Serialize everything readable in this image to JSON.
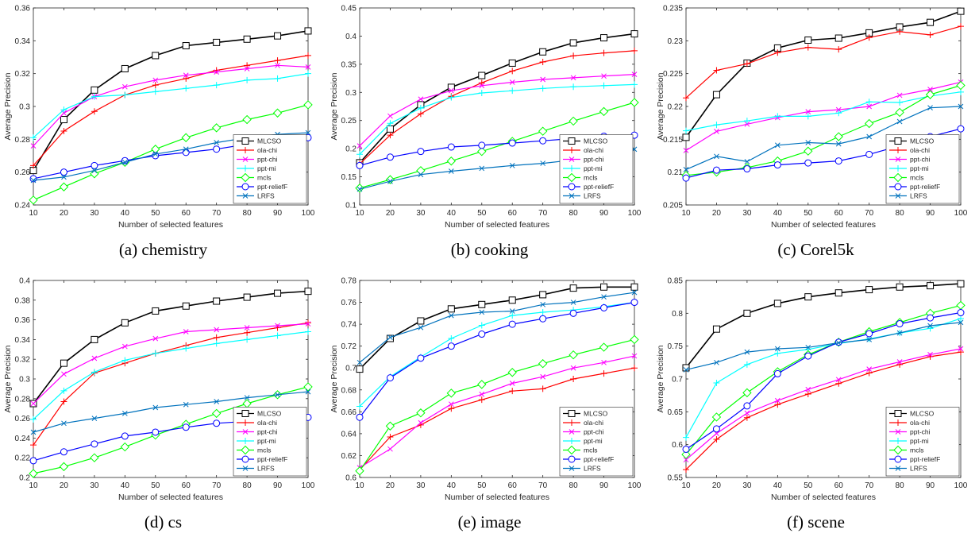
{
  "x_ticks": [
    10,
    20,
    30,
    40,
    50,
    60,
    70,
    80,
    90,
    100
  ],
  "series_styles": [
    {
      "name": "MLCSO",
      "color": "#000000",
      "marker": "square"
    },
    {
      "name": "ola-chi",
      "color": "#ff0000",
      "marker": "plus"
    },
    {
      "name": "ppt-chi",
      "color": "#ff00ff",
      "marker": "x"
    },
    {
      "name": "ppt-mi",
      "color": "#00ffff",
      "marker": "plus"
    },
    {
      "name": "mcls",
      "color": "#00ff00",
      "marker": "diamond"
    },
    {
      "name": "ppt-reliefF",
      "color": "#0000ff",
      "marker": "circle"
    },
    {
      "name": "LRFS",
      "color": "#0072bd",
      "marker": "x"
    }
  ],
  "chart_data": [
    {
      "type": "line",
      "caption": "(a) chemistry",
      "xlabel": "Number of selected features",
      "ylabel": "Average Precision",
      "xlim": [
        10,
        100
      ],
      "ylim": [
        0.24,
        0.36
      ],
      "yticks": [
        0.24,
        0.26,
        0.28,
        0.3,
        0.32,
        0.34,
        0.36
      ],
      "ytick_labels": [
        "0.24",
        "0.26",
        "0.28",
        "0.3",
        "0.32",
        "0.34",
        "0.36"
      ],
      "legend": "bottom-right",
      "x": [
        10,
        20,
        30,
        40,
        50,
        60,
        70,
        80,
        90,
        100
      ],
      "series": [
        {
          "name": "MLCSO",
          "values": [
            0.261,
            0.292,
            0.31,
            0.323,
            0.331,
            0.337,
            0.339,
            0.341,
            0.343,
            0.346
          ]
        },
        {
          "name": "ola-chi",
          "values": [
            0.264,
            0.285,
            0.297,
            0.307,
            0.313,
            0.317,
            0.322,
            0.325,
            0.328,
            0.331
          ]
        },
        {
          "name": "ppt-chi",
          "values": [
            0.276,
            0.296,
            0.306,
            0.312,
            0.316,
            0.319,
            0.321,
            0.323,
            0.325,
            0.324
          ]
        },
        {
          "name": "ppt-mi",
          "values": [
            0.281,
            0.298,
            0.306,
            0.307,
            0.309,
            0.311,
            0.313,
            0.316,
            0.317,
            0.32
          ]
        },
        {
          "name": "mcls",
          "values": [
            0.243,
            0.251,
            0.259,
            0.266,
            0.274,
            0.281,
            0.287,
            0.292,
            0.296,
            0.301
          ]
        },
        {
          "name": "ppt-reliefF",
          "values": [
            0.256,
            0.26,
            0.264,
            0.267,
            0.27,
            0.272,
            0.274,
            0.277,
            0.279,
            0.281
          ]
        },
        {
          "name": "LRFS",
          "values": [
            0.255,
            0.257,
            0.261,
            0.266,
            0.271,
            0.274,
            0.278,
            0.281,
            0.283,
            0.284
          ]
        }
      ]
    },
    {
      "type": "line",
      "caption": "(b) cooking",
      "xlabel": "Number of selected features",
      "ylabel": "Average Precision",
      "xlim": [
        10,
        100
      ],
      "ylim": [
        0.1,
        0.45
      ],
      "yticks": [
        0.1,
        0.15,
        0.2,
        0.25,
        0.3,
        0.35,
        0.4,
        0.45
      ],
      "ytick_labels": [
        "0.1",
        "0.15",
        "0.2",
        "0.25",
        "0.3",
        "0.35",
        "0.4",
        "0.45"
      ],
      "legend": "bottom-right",
      "x": [
        10,
        20,
        30,
        40,
        50,
        60,
        70,
        80,
        90,
        100
      ],
      "series": [
        {
          "name": "MLCSO",
          "values": [
            0.175,
            0.235,
            0.278,
            0.309,
            0.33,
            0.352,
            0.372,
            0.388,
            0.397,
            0.404
          ]
        },
        {
          "name": "ola-chi",
          "values": [
            0.173,
            0.224,
            0.262,
            0.293,
            0.317,
            0.338,
            0.354,
            0.365,
            0.37,
            0.374
          ]
        },
        {
          "name": "ppt-chi",
          "values": [
            0.205,
            0.258,
            0.288,
            0.303,
            0.312,
            0.318,
            0.323,
            0.326,
            0.329,
            0.332
          ]
        },
        {
          "name": "ppt-mi",
          "values": [
            0.19,
            0.245,
            0.272,
            0.291,
            0.299,
            0.303,
            0.307,
            0.31,
            0.312,
            0.314
          ]
        },
        {
          "name": "mcls",
          "values": [
            0.13,
            0.145,
            0.161,
            0.178,
            0.195,
            0.213,
            0.231,
            0.249,
            0.266,
            0.282
          ]
        },
        {
          "name": "ppt-reliefF",
          "values": [
            0.17,
            0.185,
            0.195,
            0.203,
            0.206,
            0.21,
            0.214,
            0.218,
            0.222,
            0.224
          ]
        },
        {
          "name": "LRFS",
          "values": [
            0.128,
            0.142,
            0.154,
            0.16,
            0.165,
            0.17,
            0.174,
            0.18,
            0.185,
            0.199
          ]
        }
      ]
    },
    {
      "type": "line",
      "caption": "(c) Corel5k",
      "xlabel": "Number of selected features",
      "ylabel": "Average Precision",
      "xlim": [
        10,
        100
      ],
      "ylim": [
        0.205,
        0.235
      ],
      "yticks": [
        0.205,
        0.21,
        0.215,
        0.22,
        0.225,
        0.23,
        0.235
      ],
      "ytick_labels": [
        "0.205",
        "0.21",
        "0.215",
        "0.22",
        "0.225",
        "0.23",
        "0.235"
      ],
      "legend": "bottom-right",
      "x": [
        10,
        20,
        30,
        40,
        50,
        60,
        70,
        80,
        90,
        100
      ],
      "series": [
        {
          "name": "MLCSO",
          "values": [
            0.2153,
            0.2218,
            0.2266,
            0.2289,
            0.2301,
            0.2304,
            0.2312,
            0.2321,
            0.2328,
            0.2345
          ]
        },
        {
          "name": "ola-chi",
          "values": [
            0.2213,
            0.2255,
            0.2265,
            0.2282,
            0.229,
            0.2287,
            0.2305,
            0.2314,
            0.2309,
            0.2322
          ]
        },
        {
          "name": "ppt-chi",
          "values": [
            0.2133,
            0.2162,
            0.2173,
            0.2183,
            0.2192,
            0.2195,
            0.22,
            0.2217,
            0.2226,
            0.2237
          ]
        },
        {
          "name": "ppt-mi",
          "values": [
            0.2163,
            0.2172,
            0.2178,
            0.2185,
            0.2185,
            0.219,
            0.2207,
            0.2206,
            0.2216,
            0.2222
          ]
        },
        {
          "name": "mcls",
          "values": [
            0.2095,
            0.21,
            0.2107,
            0.2117,
            0.2132,
            0.2154,
            0.2174,
            0.2191,
            0.2218,
            0.2232
          ]
        },
        {
          "name": "ppt-reliefF",
          "values": [
            0.2091,
            0.2103,
            0.2105,
            0.2111,
            0.2114,
            0.2117,
            0.2127,
            0.214,
            0.2154,
            0.2166
          ]
        },
        {
          "name": "LRFS",
          "values": [
            0.2104,
            0.2124,
            0.2116,
            0.2141,
            0.2145,
            0.2143,
            0.2154,
            0.2177,
            0.2198,
            0.22
          ]
        }
      ]
    },
    {
      "type": "line",
      "caption": "(d) cs",
      "xlabel": "Number of selected features",
      "ylabel": "Average Precision",
      "xlim": [
        10,
        100
      ],
      "ylim": [
        0.2,
        0.4
      ],
      "yticks": [
        0.2,
        0.22,
        0.24,
        0.26,
        0.28,
        0.3,
        0.32,
        0.34,
        0.36,
        0.38,
        0.4
      ],
      "ytick_labels": [
        "0.2",
        "0.22",
        "0.24",
        "0.26",
        "0.28",
        "0.3",
        "0.32",
        "0.34",
        "0.36",
        "0.38",
        "0.4"
      ],
      "legend": "bottom-right",
      "x": [
        10,
        20,
        30,
        40,
        50,
        60,
        70,
        80,
        90,
        100
      ],
      "series": [
        {
          "name": "MLCSO",
          "values": [
            0.275,
            0.316,
            0.34,
            0.357,
            0.369,
            0.374,
            0.379,
            0.383,
            0.387,
            0.389
          ]
        },
        {
          "name": "ola-chi",
          "values": [
            0.233,
            0.277,
            0.306,
            0.316,
            0.326,
            0.334,
            0.342,
            0.347,
            0.352,
            0.357
          ]
        },
        {
          "name": "ppt-chi",
          "values": [
            0.275,
            0.305,
            0.321,
            0.333,
            0.341,
            0.348,
            0.35,
            0.352,
            0.354,
            0.356
          ]
        },
        {
          "name": "ppt-mi",
          "values": [
            0.259,
            0.288,
            0.307,
            0.319,
            0.326,
            0.331,
            0.336,
            0.34,
            0.344,
            0.348
          ]
        },
        {
          "name": "mcls",
          "values": [
            0.204,
            0.211,
            0.22,
            0.231,
            0.243,
            0.254,
            0.265,
            0.275,
            0.284,
            0.292
          ]
        },
        {
          "name": "ppt-reliefF",
          "values": [
            0.217,
            0.226,
            0.234,
            0.242,
            0.246,
            0.251,
            0.255,
            0.257,
            0.259,
            0.261
          ]
        },
        {
          "name": "LRFS",
          "values": [
            0.246,
            0.255,
            0.26,
            0.265,
            0.271,
            0.274,
            0.277,
            0.281,
            0.284,
            0.287
          ]
        }
      ]
    },
    {
      "type": "line",
      "caption": "(e) image",
      "xlabel": "Number of selected features",
      "ylabel": "Average Precision",
      "xlim": [
        10,
        100
      ],
      "ylim": [
        0.6,
        0.78
      ],
      "yticks": [
        0.6,
        0.62,
        0.64,
        0.66,
        0.68,
        0.7,
        0.72,
        0.74,
        0.76,
        0.78
      ],
      "ytick_labels": [
        "0.6",
        "0.62",
        "0.64",
        "0.66",
        "0.68",
        "0.7",
        "0.72",
        "0.74",
        "0.76",
        "0.78"
      ],
      "legend": "bottom-right",
      "x": [
        10,
        20,
        30,
        40,
        50,
        60,
        70,
        80,
        90,
        100
      ],
      "series": [
        {
          "name": "MLCSO",
          "values": [
            0.699,
            0.727,
            0.743,
            0.754,
            0.758,
            0.762,
            0.767,
            0.773,
            0.774,
            0.774
          ]
        },
        {
          "name": "ola-chi",
          "values": [
            0.607,
            0.637,
            0.648,
            0.663,
            0.671,
            0.679,
            0.681,
            0.69,
            0.695,
            0.7
          ]
        },
        {
          "name": "ppt-chi",
          "values": [
            0.609,
            0.626,
            0.65,
            0.667,
            0.676,
            0.686,
            0.692,
            0.7,
            0.705,
            0.711
          ]
        },
        {
          "name": "ppt-mi",
          "values": [
            0.665,
            0.692,
            0.71,
            0.727,
            0.739,
            0.748,
            0.751,
            0.753,
            0.756,
            0.76
          ]
        },
        {
          "name": "mcls",
          "values": [
            0.606,
            0.647,
            0.659,
            0.677,
            0.685,
            0.696,
            0.704,
            0.712,
            0.719,
            0.726
          ]
        },
        {
          "name": "ppt-reliefF",
          "values": [
            0.655,
            0.691,
            0.709,
            0.72,
            0.731,
            0.74,
            0.745,
            0.75,
            0.755,
            0.76
          ]
        },
        {
          "name": "LRFS",
          "values": [
            0.705,
            0.728,
            0.737,
            0.748,
            0.751,
            0.752,
            0.758,
            0.76,
            0.765,
            0.769
          ]
        }
      ]
    },
    {
      "type": "line",
      "caption": "(f) scene",
      "xlabel": "Number of selected features",
      "ylabel": "Average Precision",
      "xlim": [
        10,
        100
      ],
      "ylim": [
        0.55,
        0.85
      ],
      "yticks": [
        0.55,
        0.6,
        0.65,
        0.7,
        0.75,
        0.8,
        0.85
      ],
      "ytick_labels": [
        "0.55",
        "0.6",
        "0.65",
        "0.7",
        "0.75",
        "0.8",
        "0.85"
      ],
      "legend": "bottom-right",
      "x": [
        10,
        20,
        30,
        40,
        50,
        60,
        70,
        80,
        90,
        100
      ],
      "series": [
        {
          "name": "MLCSO",
          "values": [
            0.717,
            0.776,
            0.8,
            0.815,
            0.825,
            0.831,
            0.836,
            0.84,
            0.842,
            0.845
          ]
        },
        {
          "name": "ola-chi",
          "values": [
            0.562,
            0.608,
            0.641,
            0.661,
            0.677,
            0.693,
            0.709,
            0.722,
            0.734,
            0.741
          ]
        },
        {
          "name": "ppt-chi",
          "values": [
            0.577,
            0.617,
            0.648,
            0.667,
            0.684,
            0.699,
            0.715,
            0.726,
            0.737,
            0.746
          ]
        },
        {
          "name": "ppt-mi",
          "values": [
            0.611,
            0.694,
            0.722,
            0.739,
            0.745,
            0.754,
            0.761,
            0.77,
            0.777,
            0.792
          ]
        },
        {
          "name": "mcls",
          "values": [
            0.585,
            0.642,
            0.679,
            0.711,
            0.737,
            0.756,
            0.772,
            0.786,
            0.8,
            0.812
          ]
        },
        {
          "name": "ppt-reliefF",
          "values": [
            0.593,
            0.624,
            0.659,
            0.708,
            0.735,
            0.756,
            0.769,
            0.784,
            0.793,
            0.801
          ]
        },
        {
          "name": "LRFS",
          "values": [
            0.714,
            0.725,
            0.741,
            0.746,
            0.748,
            0.755,
            0.76,
            0.77,
            0.781,
            0.786
          ]
        }
      ]
    }
  ]
}
